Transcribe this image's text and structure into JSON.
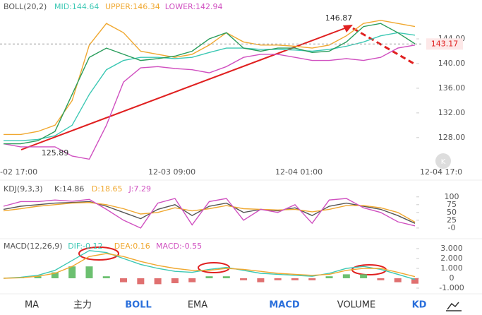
{
  "main": {
    "legend": [
      "BOLL(20,2)",
      "MID:144.64",
      "UPPER:146.34",
      "LOWER:142.94"
    ],
    "price": 143.17,
    "high": 146.87,
    "low": 125.89,
    "x_labels": [
      "-02 17:00",
      "12-03 09:00",
      "12-04 01:00",
      "12-04 17:0"
    ],
    "ylim": [
      123.4,
      150.3
    ],
    "yticks": [
      {
        "value": 144,
        "label": "144.00"
      },
      {
        "value": 140,
        "label": "140.00"
      },
      {
        "value": 136,
        "label": "136.00"
      },
      {
        "value": 132,
        "label": "132.00"
      },
      {
        "value": 128,
        "label": "128.00"
      }
    ],
    "series": [
      {
        "name": "UPPER",
        "color": "#f0a830",
        "values": [
          128.5,
          128.5,
          129,
          130,
          134,
          143,
          146.5,
          145,
          142,
          141.5,
          141,
          141.5,
          143,
          145,
          143.5,
          143,
          143,
          142.8,
          142.5,
          143,
          144.5,
          146.5,
          147,
          146.5,
          146
        ]
      },
      {
        "name": "MID",
        "color": "#3cc8b4",
        "values": [
          127.5,
          127.5,
          127.7,
          128.3,
          130,
          135,
          139,
          140.5,
          141,
          141,
          140.8,
          141,
          141.8,
          142.5,
          142.5,
          142.3,
          142.3,
          142.2,
          142,
          142.3,
          142.8,
          143.5,
          144.5,
          145,
          144.6
        ]
      },
      {
        "name": "LOWER",
        "color": "#d050c0",
        "values": [
          127,
          126.5,
          126.5,
          126.5,
          125,
          124.5,
          130,
          137,
          139.3,
          139.5,
          139.2,
          139,
          138.5,
          139.5,
          141,
          141.5,
          141.5,
          141,
          140.5,
          140.5,
          140.8,
          140.5,
          141,
          142.5,
          143
        ]
      },
      {
        "name": "CLOSE",
        "color": "#2a9d5c",
        "values": [
          127,
          127,
          127.5,
          129,
          135,
          141,
          142.5,
          141.5,
          140.5,
          140.8,
          141.2,
          142,
          144,
          145,
          142.5,
          142,
          142.5,
          142.5,
          141.8,
          142,
          143.5,
          146,
          146.5,
          145,
          143.2
        ]
      }
    ]
  },
  "kdj": {
    "legend": [
      "KDJ(9,3,3)",
      "K:14.86",
      "D:18.65",
      "J:7.29"
    ],
    "ylim": [
      -23,
      138
    ],
    "yticks": [
      100,
      75,
      50,
      25,
      {
        "value": 0,
        "label": "-0"
      }
    ],
    "series": [
      {
        "name": "K",
        "color": "#555555",
        "values": [
          60,
          70,
          75,
          80,
          82,
          85,
          70,
          50,
          30,
          60,
          75,
          40,
          70,
          80,
          50,
          60,
          55,
          65,
          40,
          70,
          80,
          70,
          60,
          40,
          15
        ]
      },
      {
        "name": "D",
        "color": "#f0a830",
        "values": [
          55,
          62,
          70,
          75,
          80,
          82,
          75,
          62,
          45,
          50,
          65,
          55,
          62,
          72,
          62,
          60,
          58,
          60,
          52,
          60,
          72,
          72,
          65,
          50,
          19
        ]
      },
      {
        "name": "J",
        "color": "#d050c0",
        "values": [
          70,
          85,
          85,
          90,
          86,
          92,
          60,
          25,
          0,
          80,
          95,
          10,
          85,
          95,
          25,
          60,
          50,
          75,
          15,
          90,
          95,
          65,
          50,
          20,
          7
        ]
      }
    ]
  },
  "macd": {
    "legend": [
      "MACD(12,26,9)",
      "DIF:-0.12",
      "DEA:0.16",
      "MACD:-0.55"
    ],
    "ylim": [
      -1.43,
      3.57
    ],
    "yticks": [
      {
        "value": 3,
        "label": "3.000"
      },
      {
        "value": 2,
        "label": "2.000"
      },
      {
        "value": 1,
        "label": "1.000"
      },
      0,
      {
        "value": -1,
        "label": "-1.000"
      }
    ],
    "series": [
      {
        "name": "DIF",
        "color": "#3cc8b4",
        "values": [
          0,
          0.1,
          0.3,
          0.8,
          1.8,
          2.8,
          2.6,
          2.0,
          1.4,
          1.0,
          0.7,
          0.6,
          0.9,
          1.1,
          0.8,
          0.5,
          0.4,
          0.3,
          0.2,
          0.5,
          1.0,
          1.2,
          0.9,
          0.4,
          -0.12
        ]
      },
      {
        "name": "DEA",
        "color": "#f0a830",
        "values": [
          0,
          0.05,
          0.2,
          0.5,
          1.2,
          2.2,
          2.5,
          2.2,
          1.7,
          1.3,
          1.0,
          0.8,
          0.8,
          1.0,
          0.9,
          0.7,
          0.5,
          0.4,
          0.3,
          0.4,
          0.8,
          1.0,
          1.0,
          0.6,
          0.16
        ]
      }
    ],
    "histogram": [
      0,
      0.1,
      0.2,
      0.6,
      1.2,
      1.2,
      0.2,
      -0.4,
      -0.6,
      -0.6,
      -0.5,
      -0.4,
      0.2,
      0.2,
      -0.2,
      -0.4,
      -0.2,
      -0.2,
      -0.2,
      0.2,
      0.4,
      0.4,
      -0.2,
      -0.4,
      -0.55
    ]
  },
  "tabs": [
    "MA",
    "主力",
    "BOLL",
    "EMA",
    "MACD",
    "VOLUME",
    "KD"
  ]
}
